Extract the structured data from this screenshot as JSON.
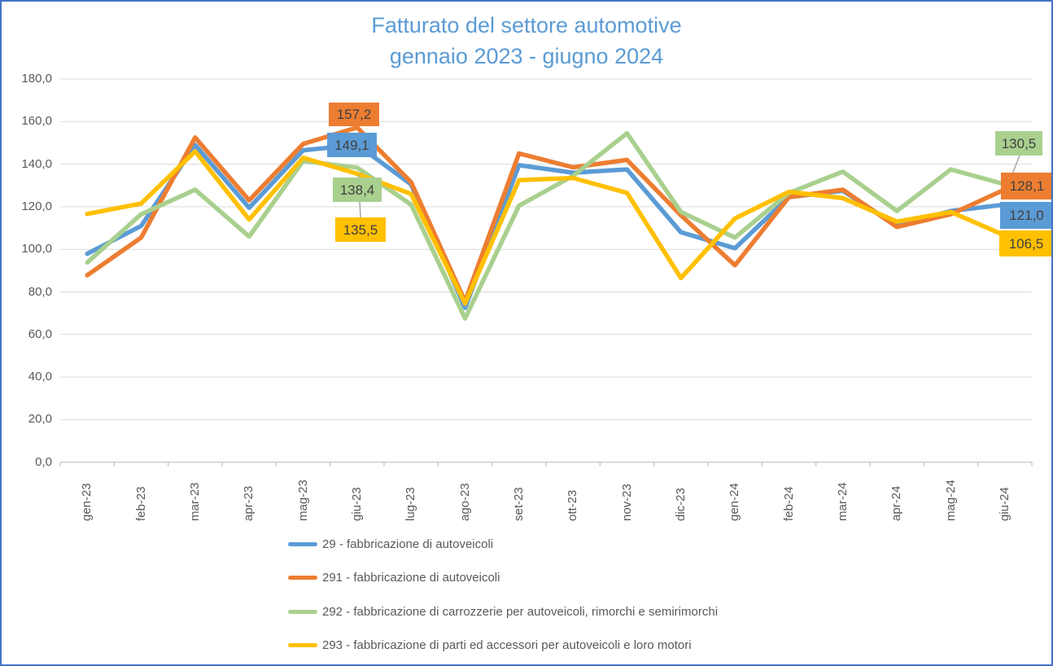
{
  "title": {
    "line1": "Fatturato del settore automotive",
    "line2": "gennaio 2023 - giugno 2024"
  },
  "colors": {
    "blue": "#5B9BD5",
    "orange": "#ED7D31",
    "green": "#A9D08E",
    "yellow": "#FFC000",
    "title_text": "#5B9BD5",
    "axis_text": "#595959",
    "label_text": "#404040",
    "gridline": "#D9D9D9",
    "axis_line": "#BFBFBF",
    "leader_line": "#A6A6A6",
    "frame_border": "#4472C4"
  },
  "chart_data": {
    "type": "line",
    "title": "Fatturato del settore automotive",
    "subtitle": "gennaio 2023 - giugno 2024",
    "legend_position": "bottom",
    "grid": true,
    "x": [
      "gen-23",
      "feb-23",
      "mar-23",
      "apr-23",
      "mag-23",
      "giu-23",
      "lug-23",
      "ago-23",
      "set-23",
      "ott-23",
      "nov-23",
      "dic-23",
      "gen-24",
      "feb-24",
      "mar-24",
      "apr-24",
      "mag-24",
      "giu-24"
    ],
    "y_axis": {
      "min": 0,
      "max": 180,
      "step": 20,
      "tick_labels": [
        "180,0",
        "160,0",
        "140,0",
        "120,0",
        "100,0",
        "80,0",
        "60,0",
        "40,0",
        "20,0",
        "0,0"
      ]
    },
    "series": [
      {
        "id": "29",
        "name": "29 - fabbricazione di autoveicoli",
        "color_key": "blue",
        "values": [
          97.9,
          111.0,
          149.0,
          119.5,
          146.5,
          149.1,
          130.5,
          72.5,
          139.5,
          136.0,
          137.5,
          108.0,
          100.5,
          124.5,
          127.5,
          111.0,
          118.0,
          121.0
        ]
      },
      {
        "id": "291",
        "name": "291 - fabbricazione di autoveicoli",
        "color_key": "orange",
        "values": [
          87.8,
          105.5,
          152.5,
          123.0,
          149.5,
          157.2,
          131.5,
          75.5,
          145.0,
          138.5,
          142.0,
          116.0,
          92.5,
          124.5,
          128.0,
          110.5,
          116.5,
          128.1
        ]
      },
      {
        "id": "292",
        "name": "292 - fabbricazione di carrozzerie per autoveicoli, rimorchi e semirimorchi",
        "color_key": "green",
        "values": [
          93.8,
          116.5,
          128.0,
          106.0,
          141.5,
          138.4,
          121.0,
          67.5,
          120.5,
          134.5,
          154.5,
          117.5,
          105.5,
          126.5,
          136.5,
          118.0,
          137.5,
          130.5
        ]
      },
      {
        "id": "293",
        "name": "293 - fabbricazione di parti ed accessori per autoveicoli e loro motori",
        "color_key": "yellow",
        "values": [
          116.6,
          121.5,
          146.0,
          114.0,
          143.0,
          135.5,
          126.0,
          74.5,
          132.5,
          133.5,
          126.5,
          86.5,
          114.5,
          127.0,
          124.0,
          113.0,
          117.5,
          106.5
        ]
      }
    ],
    "data_labels": [
      {
        "series": "291",
        "month": "giu-23",
        "text": "157,2"
      },
      {
        "series": "29",
        "month": "giu-23",
        "text": "149,1"
      },
      {
        "series": "292",
        "month": "giu-23",
        "text": "138,4"
      },
      {
        "series": "293",
        "month": "giu-23",
        "text": "135,5"
      },
      {
        "series": "292",
        "month": "giu-24",
        "text": "130,5"
      },
      {
        "series": "291",
        "month": "giu-24",
        "text": "128,1"
      },
      {
        "series": "29",
        "month": "giu-24",
        "text": "121,0"
      },
      {
        "series": "293",
        "month": "giu-24",
        "text": "106,5"
      }
    ]
  }
}
